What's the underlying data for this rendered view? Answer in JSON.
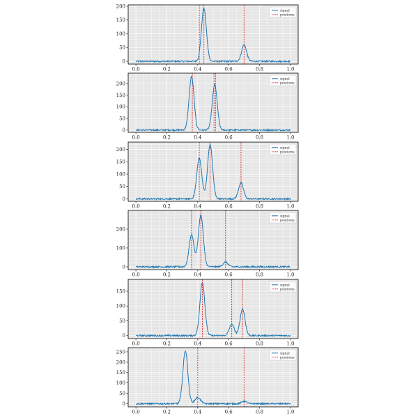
{
  "chart_data": [
    {
      "type": "line",
      "xlim": [
        0.0,
        1.0
      ],
      "ylim": [
        -10,
        205
      ],
      "x_ticks": [
        "0.0",
        "0.2",
        "0.4",
        "0.6",
        "0.8",
        "1.0"
      ],
      "y_ticks": [
        "0",
        "50",
        "100",
        "150",
        "200"
      ],
      "legend": [
        "signal",
        "positions"
      ],
      "legend_placement": "top-right",
      "grid": true,
      "peaks": [
        {
          "center": 0.44,
          "height": 193,
          "width": 0.016
        },
        {
          "center": 0.7,
          "height": 60,
          "width": 0.016
        }
      ],
      "positions": [
        0.41,
        0.44,
        0.7
      ]
    },
    {
      "type": "line",
      "xlim": [
        0.0,
        1.0
      ],
      "ylim": [
        -10,
        245
      ],
      "x_ticks": [
        "0.0",
        "0.2",
        "0.4",
        "0.6",
        "0.8",
        "1.0"
      ],
      "y_ticks": [
        "0",
        "50",
        "100",
        "150",
        "200"
      ],
      "legend": [
        "signal",
        "positions"
      ],
      "legend_placement": "top-right",
      "grid": true,
      "peaks": [
        {
          "center": 0.36,
          "height": 230,
          "width": 0.016
        },
        {
          "center": 0.51,
          "height": 195,
          "width": 0.016
        }
      ],
      "positions": [
        0.365,
        0.505,
        0.515
      ]
    },
    {
      "type": "line",
      "xlim": [
        0.0,
        1.0
      ],
      "ylim": [
        -10,
        230
      ],
      "x_ticks": [
        "0.0",
        "0.2",
        "0.4",
        "0.6",
        "0.8",
        "1.0"
      ],
      "y_ticks": [
        "0",
        "50",
        "100",
        "150",
        "200"
      ],
      "legend": [
        "signal",
        "positions"
      ],
      "legend_placement": "top-right",
      "grid": true,
      "peaks": [
        {
          "center": 0.41,
          "height": 165,
          "width": 0.016
        },
        {
          "center": 0.48,
          "height": 220,
          "width": 0.016
        },
        {
          "center": 0.68,
          "height": 65,
          "width": 0.016
        }
      ],
      "positions": [
        0.41,
        0.48,
        0.68
      ]
    },
    {
      "type": "line",
      "xlim": [
        0.0,
        1.0
      ],
      "ylim": [
        -15,
        300
      ],
      "x_ticks": [
        "0.0",
        "0.2",
        "0.4",
        "0.6",
        "0.8",
        "1.0"
      ],
      "y_ticks": [
        "0",
        "100",
        "200"
      ],
      "legend": [
        "signal",
        "positions"
      ],
      "legend_placement": "top-right",
      "grid": true,
      "peaks": [
        {
          "center": 0.36,
          "height": 170,
          "width": 0.016
        },
        {
          "center": 0.42,
          "height": 275,
          "width": 0.016
        },
        {
          "center": 0.58,
          "height": 25,
          "width": 0.016
        }
      ],
      "positions": [
        0.36,
        0.42,
        0.58
      ]
    },
    {
      "type": "line",
      "xlim": [
        0.0,
        1.0
      ],
      "ylim": [
        -10,
        190
      ],
      "x_ticks": [
        "0.0",
        "0.2",
        "0.4",
        "0.6",
        "0.8",
        "1.0"
      ],
      "y_ticks": [
        "0",
        "50",
        "100",
        "150"
      ],
      "legend": [
        "signal",
        "positions"
      ],
      "legend_placement": "top-right",
      "grid": true,
      "peaks": [
        {
          "center": 0.43,
          "height": 180,
          "width": 0.016
        },
        {
          "center": 0.62,
          "height": 38,
          "width": 0.016
        },
        {
          "center": 0.69,
          "height": 90,
          "width": 0.016
        }
      ],
      "positions": [
        0.43,
        0.62,
        0.69
      ]
    },
    {
      "type": "line",
      "xlim": [
        0.0,
        1.0
      ],
      "ylim": [
        -15,
        270
      ],
      "x_ticks": [
        "0.0",
        "0.2",
        "0.4",
        "0.6",
        "0.8",
        "1.0"
      ],
      "y_ticks": [
        "0",
        "50",
        "100",
        "150",
        "200",
        "250"
      ],
      "legend": [
        "signal",
        "positions"
      ],
      "legend_placement": "top-right",
      "grid": true,
      "peaks": [
        {
          "center": 0.32,
          "height": 255,
          "width": 0.016
        },
        {
          "center": 0.4,
          "height": 30,
          "width": 0.018
        },
        {
          "center": 0.7,
          "height": 12,
          "width": 0.016
        }
      ],
      "positions": [
        0.4,
        0.7
      ]
    }
  ]
}
